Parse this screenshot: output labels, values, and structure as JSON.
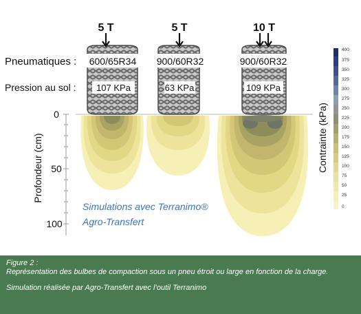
{
  "diagram": {
    "row_labels": {
      "tyres": "Pneumatiques :",
      "pressure": "Pression au sol :"
    },
    "tyres": [
      {
        "load": "5 T",
        "tyre": "600/65R34",
        "pressure": "107 KPa"
      },
      {
        "load": "5 T",
        "tyre": "900/60R32",
        "pressure": "63 KPa"
      },
      {
        "load": "10 T",
        "tyre": "900/60R32",
        "pressure": "109 KPa"
      }
    ],
    "depth_axis": {
      "title": "Profondeur (cm)",
      "ticks": [
        "0",
        "50",
        "100"
      ]
    },
    "colorbar": {
      "title": "Contrainte (kPa)",
      "ticks": [
        "400",
        "375",
        "350",
        "325",
        "300",
        "275",
        "250",
        "225",
        "200",
        "175",
        "150",
        "125",
        "100",
        "75",
        "50",
        "25",
        "0"
      ]
    },
    "note": {
      "line1": "Simulations avec Terranimo®",
      "line2": "Agro-Transfert"
    },
    "colors": {
      "caption_bg": "#4a7a4f",
      "note_text": "#3e73b5",
      "bulb_pale": "#f5efb4",
      "bulb_dark": "#8a8f62"
    }
  },
  "caption": {
    "figure_label": "Figure 2 :",
    "line1": "Représentation des bulbes de compaction sous un pneu étroit ou large en fonction de la charge.",
    "line2": "Simulation réalisée par Agro-Transfert avec l’outil Terranimo"
  }
}
